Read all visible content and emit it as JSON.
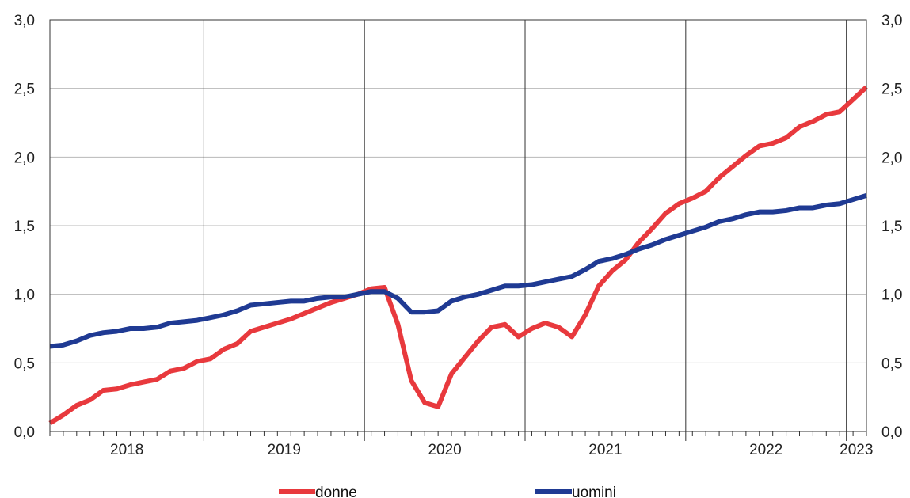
{
  "chart_data": {
    "type": "line",
    "title": "",
    "xlabel": "",
    "ylabel": "",
    "ylim": [
      0,
      3
    ],
    "y_ticks": [
      "0,0",
      "0,5",
      "1,0",
      "1,5",
      "2,0",
      "2,5",
      "3,0"
    ],
    "y_tick_values": [
      0,
      0.5,
      1.0,
      1.5,
      2.0,
      2.5,
      3.0
    ],
    "years": [
      "2018",
      "2019",
      "2020",
      "2021",
      "2022",
      "2023"
    ],
    "x_start": "2018-01",
    "x_end": "2023-03",
    "grid": "horizontal",
    "legend_placement": "bottom",
    "series": [
      {
        "name": "donne",
        "color": "#e8393d",
        "values": [
          0.06,
          0.12,
          0.19,
          0.23,
          0.3,
          0.31,
          0.34,
          0.36,
          0.38,
          0.44,
          0.46,
          0.51,
          0.53,
          0.6,
          0.64,
          0.73,
          0.76,
          0.79,
          0.82,
          0.86,
          0.9,
          0.94,
          0.97,
          1.0,
          1.04,
          1.05,
          0.78,
          0.37,
          0.21,
          0.18,
          0.42,
          0.54,
          0.66,
          0.76,
          0.78,
          0.69,
          0.75,
          0.79,
          0.76,
          0.69,
          0.85,
          1.06,
          1.17,
          1.25,
          1.38,
          1.48,
          1.59,
          1.66,
          1.7,
          1.75,
          1.85,
          1.93,
          2.01,
          2.08,
          2.1,
          2.14,
          2.22,
          2.26,
          2.31,
          2.33,
          2.42,
          2.51
        ]
      },
      {
        "name": "uomini",
        "color": "#1f3a93",
        "values": [
          0.62,
          0.63,
          0.66,
          0.7,
          0.72,
          0.73,
          0.75,
          0.75,
          0.76,
          0.79,
          0.8,
          0.81,
          0.83,
          0.85,
          0.88,
          0.92,
          0.93,
          0.94,
          0.95,
          0.95,
          0.97,
          0.98,
          0.98,
          1.0,
          1.02,
          1.02,
          0.97,
          0.87,
          0.87,
          0.88,
          0.95,
          0.98,
          1.0,
          1.03,
          1.06,
          1.06,
          1.07,
          1.09,
          1.11,
          1.13,
          1.18,
          1.24,
          1.26,
          1.29,
          1.33,
          1.36,
          1.4,
          1.43,
          1.46,
          1.49,
          1.53,
          1.55,
          1.58,
          1.6,
          1.6,
          1.61,
          1.63,
          1.63,
          1.65,
          1.66,
          1.69,
          1.72
        ]
      }
    ]
  }
}
